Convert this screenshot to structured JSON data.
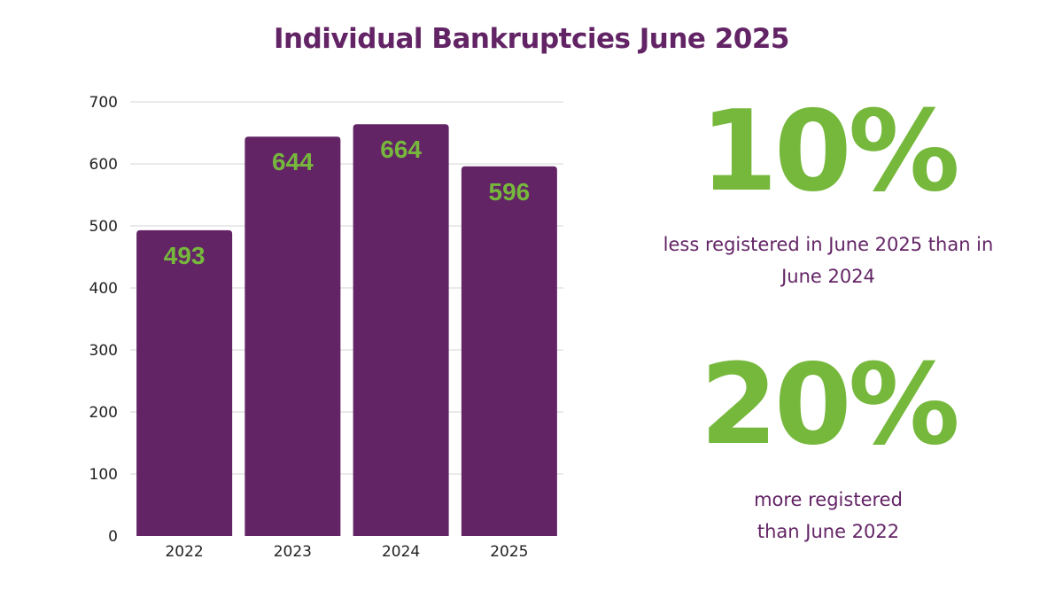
{
  "colors": {
    "bar": "#632466",
    "accent": "#76b83c",
    "title": "#632466",
    "text": "#632466",
    "grid": "#d4d4d4",
    "axis_text": "#222222"
  },
  "title": "Individual Bankruptcies June 2025",
  "chart_data": {
    "type": "bar",
    "categories": [
      "2022",
      "2023",
      "2024",
      "2025"
    ],
    "values": [
      493,
      644,
      664,
      596
    ],
    "data_labels": [
      "493",
      "644",
      "664",
      "596"
    ],
    "ylim": [
      0,
      700
    ],
    "yticks": [
      0,
      100,
      200,
      300,
      400,
      500,
      600,
      700
    ],
    "grid": true,
    "xlabel": "",
    "ylabel": ""
  },
  "stats": [
    {
      "value": "10%",
      "text": "less registered in June 2025 than in\nJune 2024"
    },
    {
      "value": "20%",
      "text": "more registered\n than June 2022"
    }
  ]
}
